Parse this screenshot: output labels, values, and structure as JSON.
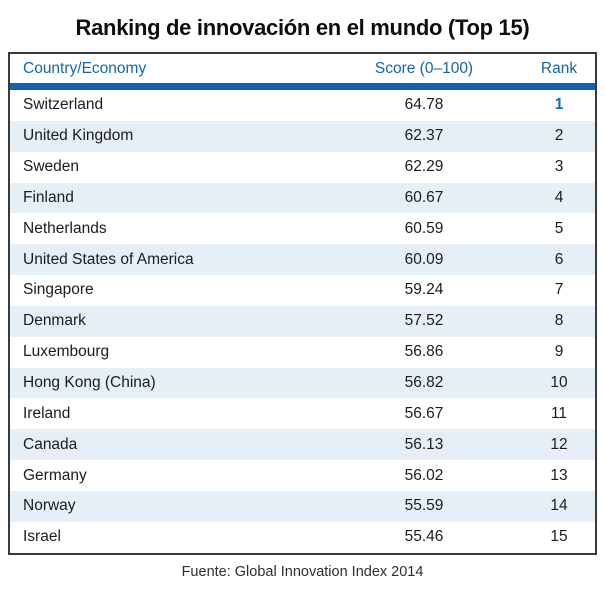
{
  "chart_data": {
    "type": "table",
    "title": "Ranking de innovación en el mundo (Top 15)",
    "columns": [
      "Country/Economy",
      "Score (0–100)",
      "Rank"
    ],
    "rows": [
      [
        "Switzerland",
        64.78,
        1
      ],
      [
        "United Kingdom",
        62.37,
        2
      ],
      [
        "Sweden",
        62.29,
        3
      ],
      [
        "Finland",
        60.67,
        4
      ],
      [
        "Netherlands",
        60.59,
        5
      ],
      [
        "United States of America",
        60.09,
        6
      ],
      [
        "Singapore",
        59.24,
        7
      ],
      [
        "Denmark",
        57.52,
        8
      ],
      [
        "Luxembourg",
        56.86,
        9
      ],
      [
        "Hong Kong (China)",
        56.82,
        10
      ],
      [
        "Ireland",
        56.67,
        11
      ],
      [
        "Canada",
        56.13,
        12
      ],
      [
        "Germany",
        56.02,
        13
      ],
      [
        "Norway",
        55.59,
        14
      ],
      [
        "Israel",
        55.46,
        15
      ]
    ],
    "highlight_rank": 1,
    "source": "Fuente: Global Innovation Index 2014",
    "layout": {
      "striped": true,
      "stripe_start": "white",
      "header_divider": true
    }
  },
  "colors": {
    "header_text": "#1565AE",
    "divider_bar": "#0F62B5",
    "alt_row": "#E6EEF7",
    "rank_highlight": "#1467BE",
    "table_border": "#3A3A3A",
    "body_text": "#1C1C1C",
    "title_text": "#0D0D0D",
    "footer_text": "#2E2E2E"
  }
}
